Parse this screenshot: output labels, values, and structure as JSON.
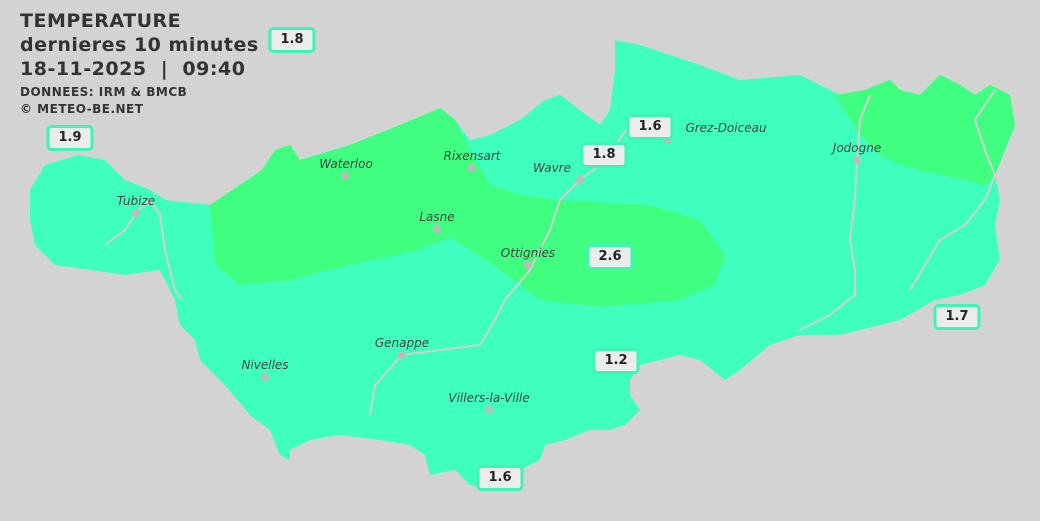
{
  "header": {
    "title": "TEMPERATURE",
    "subtitle": "dernieres 10 minutes",
    "datetime": "18-11-2025  |  09:40",
    "source": "DONNEES: IRM & BMCB",
    "copyright": "© METEO-BE.NET"
  },
  "colors": {
    "background": "#d3d3d3",
    "zone_low": "#3fffbf",
    "zone_high": "#40ff80",
    "label_border": "#3ff5b4"
  },
  "cities": [
    {
      "name": "Waterloo"
    },
    {
      "name": "Rixensart"
    },
    {
      "name": "Wavre"
    },
    {
      "name": "Grez-Doiceau"
    },
    {
      "name": "Jodogne"
    },
    {
      "name": "Tubize"
    },
    {
      "name": "Lasne"
    },
    {
      "name": "Ottignies"
    },
    {
      "name": "Genappe"
    },
    {
      "name": "Nivelles"
    },
    {
      "name": "Villers-la-Ville"
    }
  ],
  "stations": [
    "1.8",
    "1.9",
    "1.6",
    "1.8",
    "2.6",
    "1.7",
    "1.2",
    "1.6"
  ]
}
